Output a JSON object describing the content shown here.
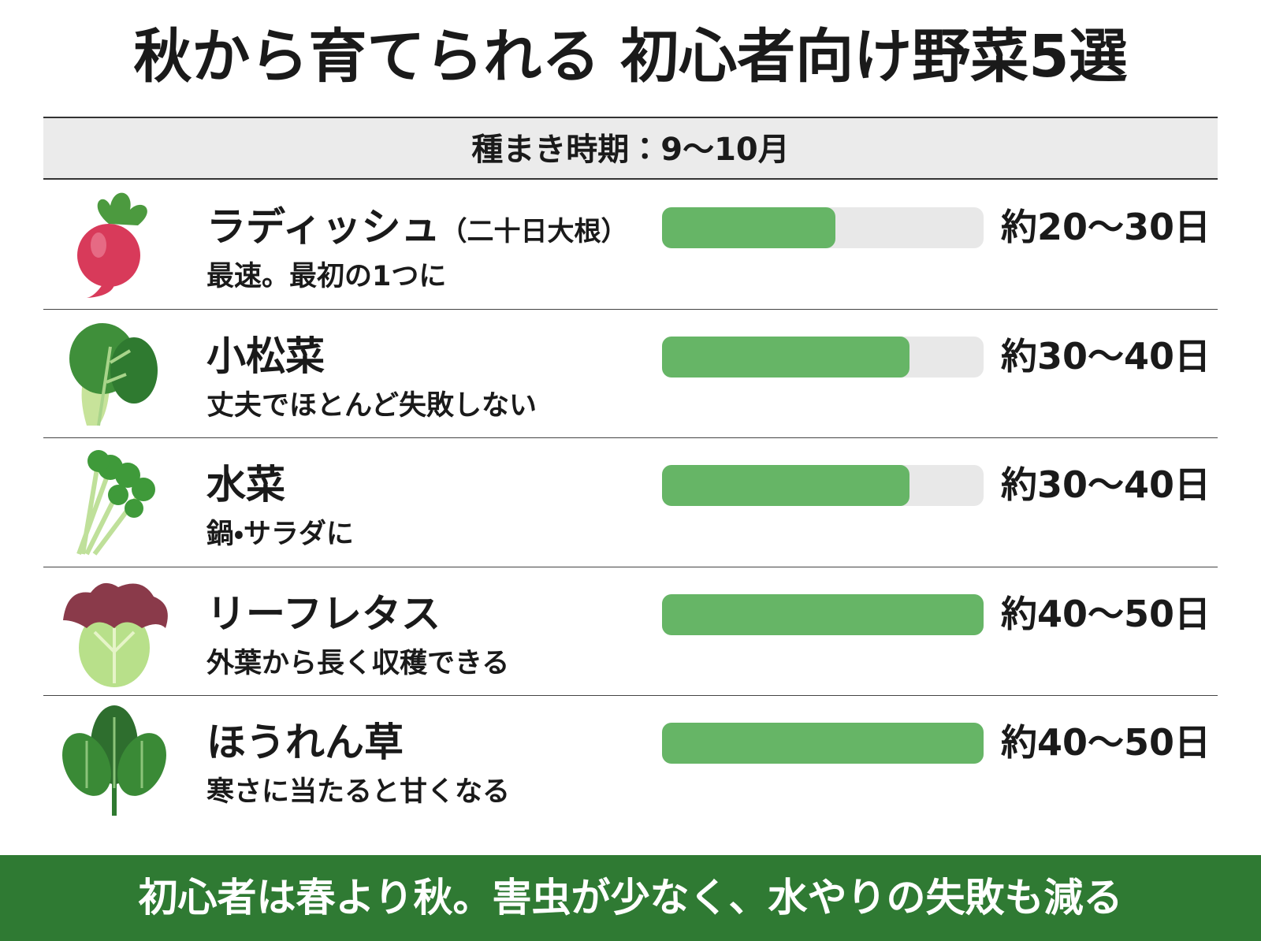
{
  "title": "秋から育てられる 初心者向け野菜5選",
  "sowing_period": "種まき時期：9〜10月",
  "xlim": [
    0,
    100
  ],
  "items": [
    {
      "name": "ラディッシュ",
      "name_note": "（二十日大根）",
      "description": "最速。最初の1つに",
      "progress": 54,
      "days": "約20〜30日"
    },
    {
      "name": "小松菜",
      "description": "丈夫でほとんど失敗しない",
      "progress": 77,
      "days": "約30〜40日"
    },
    {
      "name": "水菜",
      "description": "鍋・サラダに",
      "progress": 77,
      "days": "約30〜40日"
    },
    {
      "name": "リーフレタス",
      "description": "外葉から長く収穫できる",
      "progress": 100,
      "days": "約40〜50日"
    },
    {
      "name": "ほうれん草",
      "description": "寒さに当たると甘くなる",
      "progress": 100,
      "days": "約40〜50日"
    }
  ],
  "footer": "初心者は春より秋。害虫が少なく、水やりの失敗も減る"
}
